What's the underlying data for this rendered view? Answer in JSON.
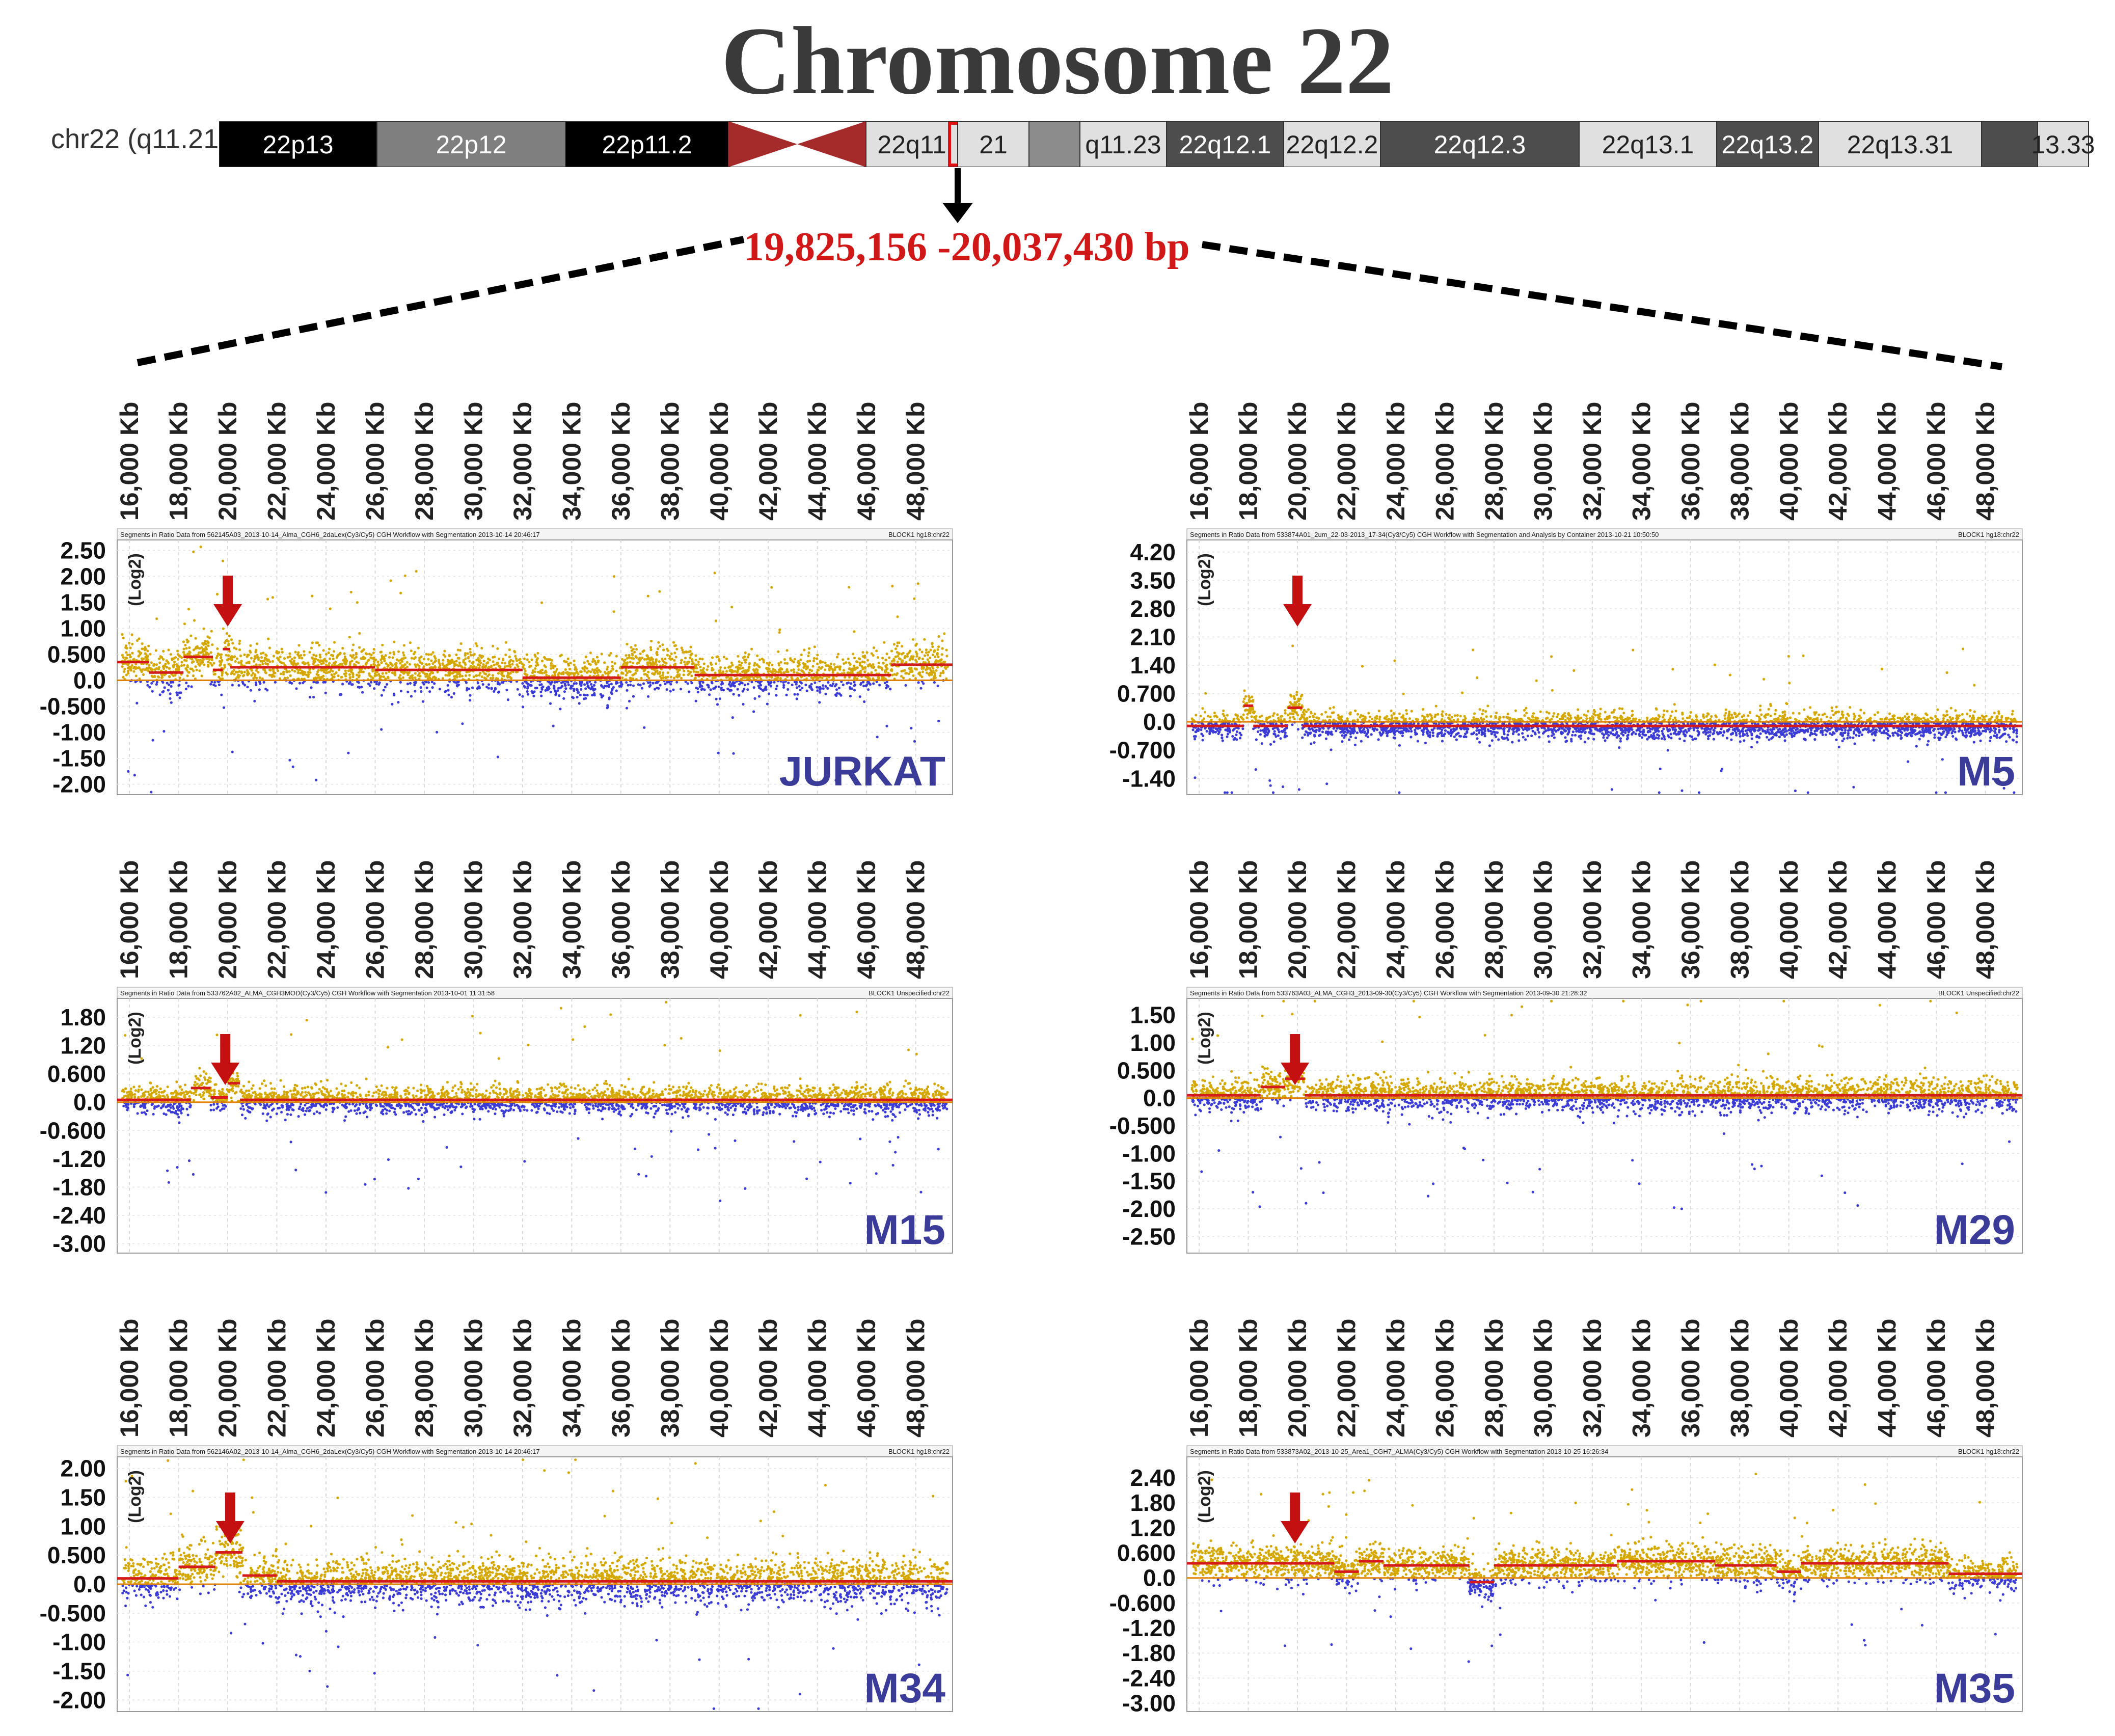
{
  "title": "Chromosome 22",
  "ideogram": {
    "label": "chr22 (q11.21)",
    "bands": [
      {
        "name": "22p13",
        "color": "#000000",
        "text_color": "#ffffff"
      },
      {
        "name": "22p12",
        "color": "#7f7f7f",
        "text_color": "#ffffff"
      },
      {
        "name": "22p11.2",
        "color": "#000000",
        "text_color": "#ffffff"
      },
      {
        "name": "",
        "color": "#a52a2a",
        "text_color": "#ffffff"
      },
      {
        "name": "22q11",
        "color": "#e0e0e0",
        "text_color": "#222222"
      },
      {
        "name": "21",
        "color": "#e0e0e0",
        "text_color": "#222222"
      },
      {
        "name": "",
        "color": "#8c8c8c",
        "text_color": "#ffffff"
      },
      {
        "name": "q11.23",
        "color": "#e0e0e0",
        "text_color": "#222222"
      },
      {
        "name": "22q12.1",
        "color": "#4d4d4d",
        "text_color": "#ffffff"
      },
      {
        "name": "22q12.2",
        "color": "#e0e0e0",
        "text_color": "#222222"
      },
      {
        "name": "22q12.3",
        "color": "#4d4d4d",
        "text_color": "#ffffff"
      },
      {
        "name": "22q13.1",
        "color": "#e0e0e0",
        "text_color": "#222222"
      },
      {
        "name": "22q13.2",
        "color": "#4d4d4d",
        "text_color": "#ffffff"
      },
      {
        "name": "22q13.31",
        "color": "#e0e0e0",
        "text_color": "#222222"
      },
      {
        "name": "",
        "color": "#4d4d4d",
        "text_color": "#ffffff"
      },
      {
        "name": "13.33",
        "color": "#e0e0e0",
        "text_color": "#222222"
      }
    ]
  },
  "region": "19,825,156 -20,037,430 bp",
  "chart_data": [
    {
      "type": "scatter",
      "sample": "JURKAT",
      "header_left": "Segments in Ratio Data from 562145A03_2013-10-14_Alma_CGH6_2daLex(Cy3/Cy5) CGH Workflow with Segmentation 2013-10-14 20:46:17",
      "header_right": "BLOCK1 hg18:chr22",
      "ylabel": "(Log2)",
      "x_unit": "Kb",
      "x_ticks": [
        "16,000 Kb",
        "18,000 Kb",
        "20,000 Kb",
        "22,000 Kb",
        "24,000 Kb",
        "26,000 Kb",
        "28,000 Kb",
        "30,000 Kb",
        "32,000 Kb",
        "34,000 Kb",
        "36,000 Kb",
        "38,000 Kb",
        "40,000 Kb",
        "42,000 Kb",
        "44,000 Kb",
        "46,000 Kb",
        "48,000 Kb"
      ],
      "x_range": [
        15500,
        49500
      ],
      "y_ticks": [
        "2.50",
        "2.00",
        "1.50",
        "1.00",
        "0.500",
        "0.0",
        "-0.500",
        "-1.00",
        "-1.50",
        "-2.00"
      ],
      "ylim": [
        -2.2,
        2.7
      ],
      "arrow_x": 20000,
      "segment_levels": [
        [
          15500,
          16800,
          0.35
        ],
        [
          16800,
          18200,
          0.15
        ],
        [
          18200,
          19400,
          0.45
        ],
        [
          19400,
          19800,
          0.2
        ],
        [
          19800,
          20100,
          0.6
        ],
        [
          20100,
          26000,
          0.25
        ],
        [
          26000,
          32000,
          0.2
        ],
        [
          32000,
          36000,
          0.05
        ],
        [
          36000,
          39000,
          0.25
        ],
        [
          39000,
          47000,
          0.1
        ],
        [
          47000,
          49500,
          0.3
        ]
      ],
      "gain_density": 0.6,
      "noise": 0.35
    },
    {
      "type": "scatter",
      "sample": "M5",
      "header_left": "Segments in Ratio Data from 533874A01_2um_22-03-2013_17-34(Cy3/Cy5) CGH Workflow with Segmentation and Analysis by Container 2013-10-21 10:50:50",
      "header_right": "BLOCK1 hg18:chr22",
      "ylabel": "(Log2)",
      "x_unit": "Kb",
      "x_ticks": [
        "16,000 Kb",
        "18,000 Kb",
        "20,000 Kb",
        "22,000 Kb",
        "24,000 Kb",
        "26,000 Kb",
        "28,000 Kb",
        "30,000 Kb",
        "32,000 Kb",
        "34,000 Kb",
        "36,000 Kb",
        "38,000 Kb",
        "40,000 Kb",
        "42,000 Kb",
        "44,000 Kb",
        "46,000 Kb",
        "48,000 Kb"
      ],
      "x_range": [
        15500,
        49500
      ],
      "y_ticks": [
        "4.20",
        "3.50",
        "2.80",
        "2.10",
        "1.40",
        "0.700",
        "0.0",
        "-0.700",
        "-1.40"
      ],
      "ylim": [
        -1.8,
        4.5
      ],
      "arrow_x": 20000,
      "segment_levels": [
        [
          15500,
          17800,
          -0.1
        ],
        [
          17800,
          18200,
          0.4
        ],
        [
          18200,
          19600,
          -0.1
        ],
        [
          19600,
          20200,
          0.35
        ],
        [
          20200,
          49500,
          -0.1
        ]
      ],
      "gain_density": 0.45,
      "noise": 0.28
    },
    {
      "type": "scatter",
      "sample": "M15",
      "header_left": "Segments in Ratio Data from 533762A02_ALMA_CGH3MOD(Cy3/Cy5) CGH Workflow with Segmentation 2013-10-01 11:31:58",
      "header_right": "BLOCK1 Unspecified:chr22",
      "ylabel": "(Log2)",
      "x_unit": "Kb",
      "x_ticks": [
        "16,000 Kb",
        "18,000 Kb",
        "20,000 Kb",
        "22,000 Kb",
        "24,000 Kb",
        "26,000 Kb",
        "28,000 Kb",
        "30,000 Kb",
        "32,000 Kb",
        "34,000 Kb",
        "36,000 Kb",
        "38,000 Kb",
        "40,000 Kb",
        "42,000 Kb",
        "44,000 Kb",
        "46,000 Kb",
        "48,000 Kb"
      ],
      "x_range": [
        15500,
        49500
      ],
      "y_ticks": [
        "1.80",
        "1.20",
        "0.600",
        "0.0",
        "-0.600",
        "-1.20",
        "-1.80",
        "-2.40",
        "-3.00"
      ],
      "ylim": [
        -3.2,
        2.2
      ],
      "arrow_x": 19900,
      "segment_levels": [
        [
          15500,
          18500,
          0.05
        ],
        [
          18500,
          19300,
          0.3
        ],
        [
          19300,
          20000,
          0.1
        ],
        [
          20000,
          20500,
          0.4
        ],
        [
          20500,
          49500,
          0.05
        ]
      ],
      "gain_density": 0.55,
      "noise": 0.25
    },
    {
      "type": "scatter",
      "sample": "M29",
      "header_left": "Segments in Ratio Data from 533763A03_ALMA_CGH3_2013-09-30(Cy3/Cy5) CGH Workflow with Segmentation 2013-09-30 21:28:32",
      "header_right": "BLOCK1 Unspecified:chr22",
      "ylabel": "(Log2)",
      "x_unit": "Kb",
      "x_ticks": [
        "16,000 Kb",
        "18,000 Kb",
        "20,000 Kb",
        "22,000 Kb",
        "24,000 Kb",
        "26,000 Kb",
        "28,000 Kb",
        "30,000 Kb",
        "32,000 Kb",
        "34,000 Kb",
        "36,000 Kb",
        "38,000 Kb",
        "40,000 Kb",
        "42,000 Kb",
        "44,000 Kb",
        "46,000 Kb",
        "48,000 Kb"
      ],
      "x_range": [
        15500,
        49500
      ],
      "y_ticks": [
        "1.50",
        "1.00",
        "0.500",
        "0.0",
        "-0.500",
        "-1.00",
        "-1.50",
        "-2.00",
        "-2.50"
      ],
      "ylim": [
        -2.8,
        1.8
      ],
      "arrow_x": 19900,
      "segment_levels": [
        [
          15500,
          18500,
          0.05
        ],
        [
          18500,
          19500,
          0.2
        ],
        [
          19500,
          20300,
          0.35
        ],
        [
          20300,
          49500,
          0.05
        ]
      ],
      "gain_density": 0.55,
      "noise": 0.25
    },
    {
      "type": "scatter",
      "sample": "M34",
      "header_left": "Segments in Ratio Data from 562146A02_2013-10-14_Alma_CGH6_2daLex(Cy3/Cy5) CGH Workflow with Segmentation 2013-10-14 20:46:17",
      "header_right": "BLOCK1 hg18:chr22",
      "ylabel": "(Log2)",
      "x_unit": "Kb",
      "x_ticks": [
        "16,000 Kb",
        "18,000 Kb",
        "20,000 Kb",
        "22,000 Kb",
        "24,000 Kb",
        "26,000 Kb",
        "28,000 Kb",
        "30,000 Kb",
        "32,000 Kb",
        "34,000 Kb",
        "36,000 Kb",
        "38,000 Kb",
        "40,000 Kb",
        "42,000 Kb",
        "44,000 Kb",
        "46,000 Kb",
        "48,000 Kb"
      ],
      "x_range": [
        15500,
        49500
      ],
      "y_ticks": [
        "2.00",
        "1.50",
        "1.00",
        "0.500",
        "0.0",
        "-0.500",
        "-1.00",
        "-1.50",
        "-2.00"
      ],
      "ylim": [
        -2.2,
        2.2
      ],
      "arrow_x": 20100,
      "segment_levels": [
        [
          15500,
          18000,
          0.1
        ],
        [
          18000,
          19500,
          0.3
        ],
        [
          19500,
          20600,
          0.55
        ],
        [
          20600,
          22000,
          0.15
        ],
        [
          22000,
          49500,
          0.05
        ]
      ],
      "gain_density": 0.6,
      "noise": 0.33
    },
    {
      "type": "scatter",
      "sample": "M35",
      "header_left": "Segments in Ratio Data from 533873A02_2013-10-25_Area1_CGH7_ALMA(Cy3/Cy5) CGH Workflow with Segmentation 2013-10-25 16:26:34",
      "header_right": "BLOCK1 hg18:chr22",
      "ylabel": "(Log2)",
      "x_unit": "Kb",
      "x_ticks": [
        "16,000 Kb",
        "18,000 Kb",
        "20,000 Kb",
        "22,000 Kb",
        "24,000 Kb",
        "26,000 Kb",
        "28,000 Kb",
        "30,000 Kb",
        "32,000 Kb",
        "34,000 Kb",
        "36,000 Kb",
        "38,000 Kb",
        "40,000 Kb",
        "42,000 Kb",
        "44,000 Kb",
        "46,000 Kb",
        "48,000 Kb"
      ],
      "x_range": [
        15500,
        49500
      ],
      "y_ticks": [
        "2.40",
        "1.80",
        "1.20",
        "0.600",
        "0.0",
        "-0.600",
        "-1.20",
        "-1.80",
        "-2.40",
        "-3.00"
      ],
      "ylim": [
        -3.2,
        2.9
      ],
      "arrow_x": 19900,
      "segment_levels": [
        [
          15500,
          21500,
          0.35
        ],
        [
          21500,
          22500,
          0.15
        ],
        [
          22500,
          23500,
          0.4
        ],
        [
          23500,
          27000,
          0.3
        ],
        [
          27000,
          28000,
          -0.1
        ],
        [
          28000,
          33000,
          0.3
        ],
        [
          33000,
          37000,
          0.4
        ],
        [
          37000,
          39500,
          0.3
        ],
        [
          39500,
          40500,
          0.15
        ],
        [
          40500,
          46500,
          0.35
        ],
        [
          46500,
          49500,
          0.1
        ]
      ],
      "gain_density": 0.6,
      "noise": 0.35
    }
  ]
}
